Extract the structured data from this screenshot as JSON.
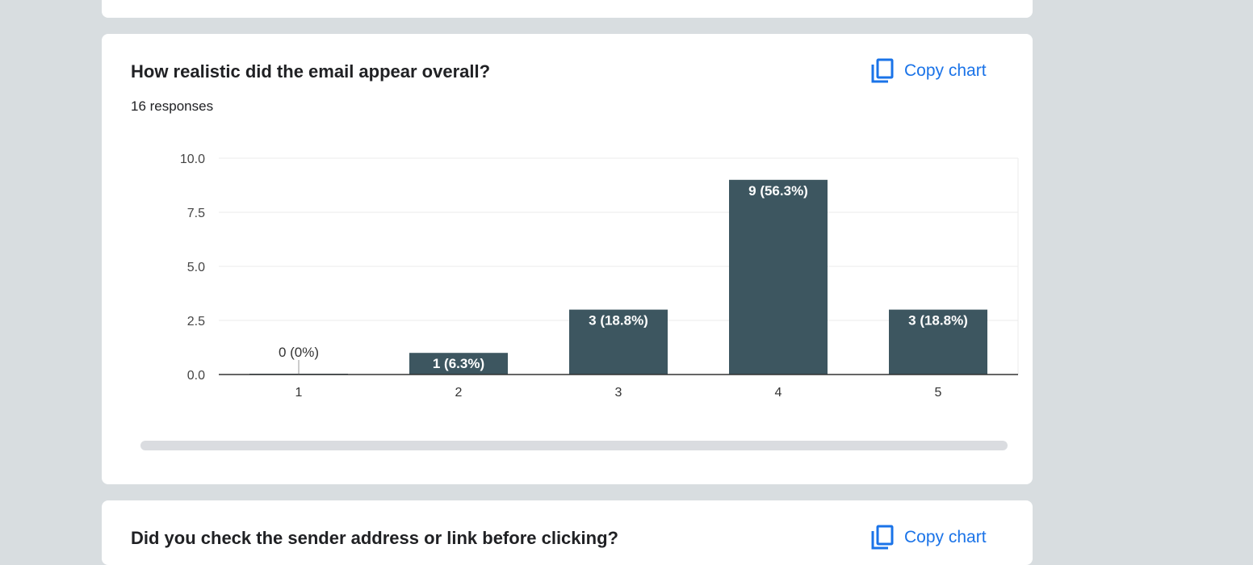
{
  "question": {
    "title": "How realistic did the email appear overall?",
    "responses": "16 responses",
    "copy_label": "Copy chart"
  },
  "next_question": {
    "title": "Did you check the sender address or link before clicking?",
    "copy_label": "Copy chart"
  },
  "colors": {
    "background": "#d8dde0",
    "card": "#ffffff",
    "accent": "#1a73e8",
    "bar": "#3d5660",
    "text": "#202124"
  },
  "icons": [
    "copy-icon"
  ],
  "chart_data": {
    "type": "bar",
    "categories": [
      "1",
      "2",
      "3",
      "4",
      "5"
    ],
    "values": [
      0,
      1,
      3,
      9,
      3
    ],
    "data_labels": [
      "0 (0%)",
      "1 (6.3%)",
      "3 (18.8%)",
      "9 (56.3%)",
      "3 (18.8%)"
    ],
    "y_ticks": [
      "0.0",
      "2.5",
      "5.0",
      "7.5",
      "10.0"
    ],
    "ylim": [
      0,
      10
    ],
    "xlabel": "",
    "ylabel": "",
    "grid": true
  }
}
